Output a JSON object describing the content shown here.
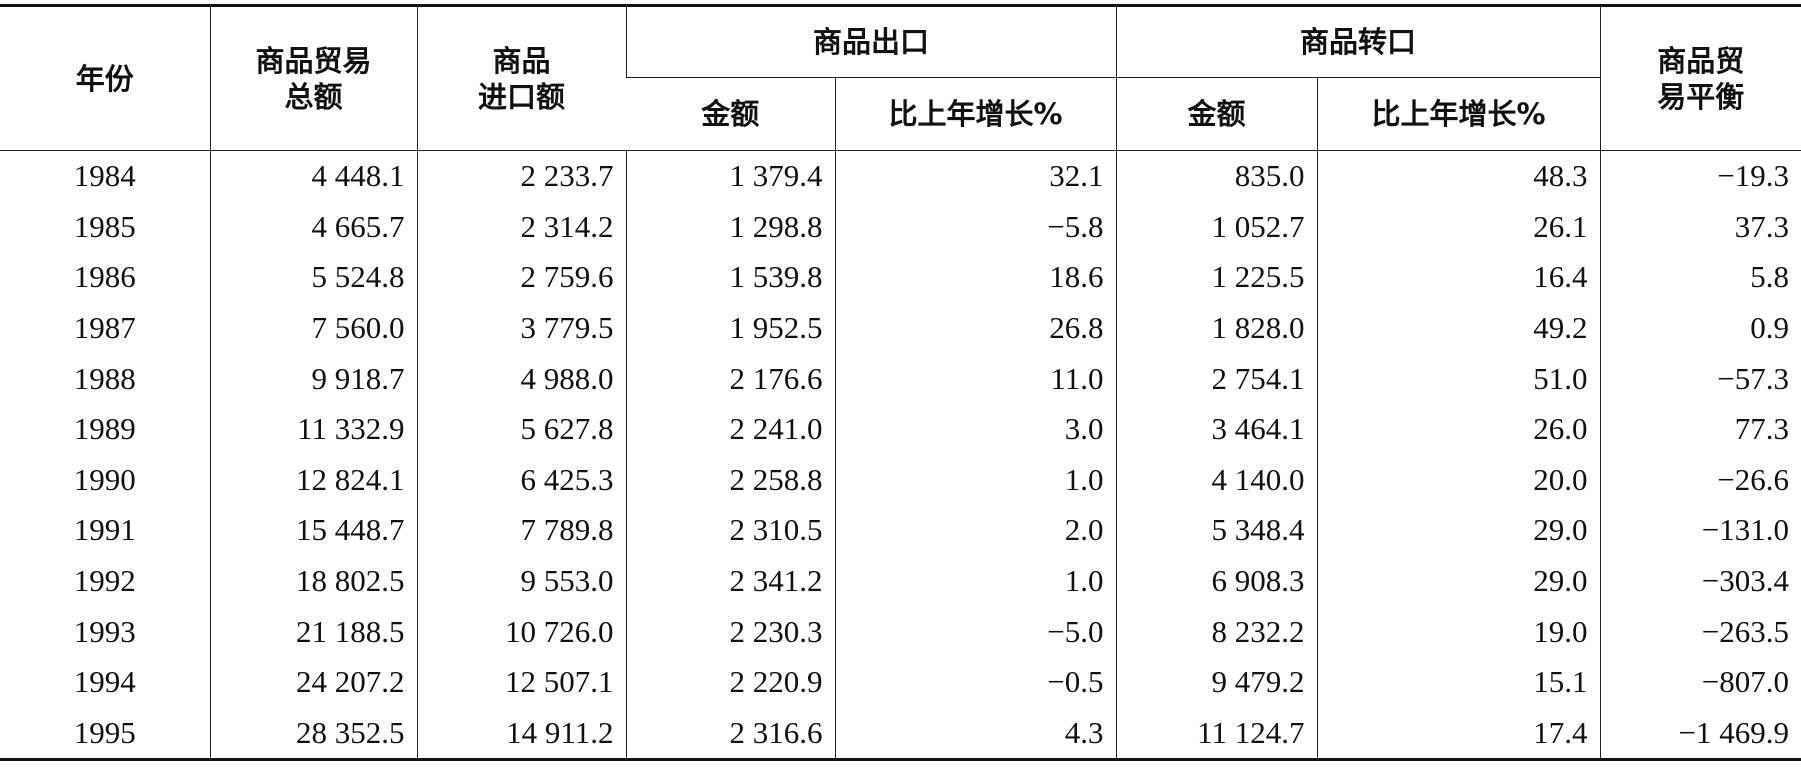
{
  "table": {
    "header": [
      [
        "年份"
      ],
      [
        "商品贸易",
        "总额"
      ],
      [
        "商品",
        "进口额"
      ],
      [
        "商品出口"
      ],
      [
        "商品转口"
      ],
      [
        "商品贸",
        "易平衡"
      ]
    ],
    "subheader": [
      "金额",
      "比上年增长%",
      "金额",
      "比上年增长%"
    ],
    "rows": [
      [
        "1984",
        "4 448.1",
        "2 233.7",
        "1 379.4",
        "32.1",
        "835.0",
        "48.3",
        "−19.3"
      ],
      [
        "1985",
        "4 665.7",
        "2 314.2",
        "1 298.8",
        "−5.8",
        "1 052.7",
        "26.1",
        "37.3"
      ],
      [
        "1986",
        "5 524.8",
        "2 759.6",
        "1 539.8",
        "18.6",
        "1 225.5",
        "16.4",
        "5.8"
      ],
      [
        "1987",
        "7 560.0",
        "3 779.5",
        "1 952.5",
        "26.8",
        "1 828.0",
        "49.2",
        "0.9"
      ],
      [
        "1988",
        "9 918.7",
        "4 988.0",
        "2 176.6",
        "11.0",
        "2 754.1",
        "51.0",
        "−57.3"
      ],
      [
        "1989",
        "11 332.9",
        "5 627.8",
        "2 241.0",
        "3.0",
        "3 464.1",
        "26.0",
        "77.3"
      ],
      [
        "1990",
        "12 824.1",
        "6 425.3",
        "2 258.8",
        "1.0",
        "4 140.0",
        "20.0",
        "−26.6"
      ],
      [
        "1991",
        "15 448.7",
        "7 789.8",
        "2 310.5",
        "2.0",
        "5 348.4",
        "29.0",
        "−131.0"
      ],
      [
        "1992",
        "18 802.5",
        "9 553.0",
        "2 341.2",
        "1.0",
        "6 908.3",
        "29.0",
        "−303.4"
      ],
      [
        "1993",
        "21 188.5",
        "10 726.0",
        "2 230.3",
        "−5.0",
        "8 232.2",
        "19.0",
        "−263.5"
      ],
      [
        "1994",
        "24 207.2",
        "12 507.1",
        "2 220.9",
        "−0.5",
        "9 479.2",
        "15.1",
        "−807.0"
      ],
      [
        "1995",
        "28 352.5",
        "14 911.2",
        "2 316.6",
        "4.3",
        "11 124.7",
        "17.4",
        "−1 469.9"
      ]
    ]
  }
}
